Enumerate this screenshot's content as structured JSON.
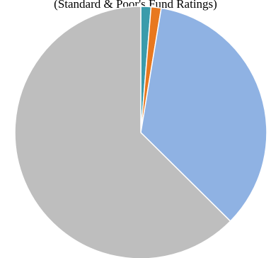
{
  "chart_data": {
    "type": "pie",
    "subtitle": "(Standard & Poor's Fund Ratings)",
    "slices": [
      {
        "value": 1.3,
        "color": "#3a9bab"
      },
      {
        "value": 1.3,
        "color": "#e8781f"
      },
      {
        "value": 34.8,
        "color": "#8fb2e3"
      },
      {
        "value": 62.6,
        "color": "#bebebe"
      }
    ],
    "start_angle_deg": 0,
    "direction": "clockwise",
    "slice_border_color": "#ffffff"
  }
}
